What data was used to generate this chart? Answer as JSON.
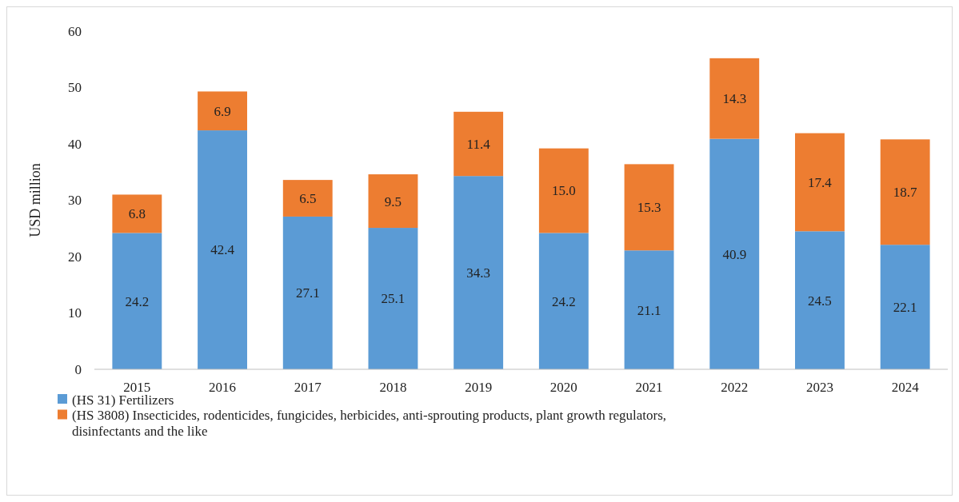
{
  "chart_data": {
    "type": "bar",
    "stacked": true,
    "ylabel": "USD million",
    "categories": [
      "2015",
      "2016",
      "2017",
      "2018",
      "2019",
      "2020",
      "2021",
      "2022",
      "2023",
      "2024"
    ],
    "series": [
      {
        "name": "(HS 31) Fertilizers",
        "color": "#5b9bd5",
        "values": [
          24.2,
          42.4,
          27.1,
          25.1,
          34.3,
          24.2,
          21.1,
          40.9,
          24.5,
          22.1
        ],
        "value_labels": [
          "24.2",
          "42.4",
          "27.1",
          "25.1",
          "34.3",
          "24.2",
          "21.1",
          "40.9",
          "24.5",
          "22.1"
        ]
      },
      {
        "name": "(HS 3808) Insecticides, rodenticides, fungicides, herbicides, anti-sprouting products, plant growth regulators, disinfectants and the like",
        "color": "#ed7d31",
        "values": [
          6.8,
          6.9,
          6.5,
          9.5,
          11.4,
          15.0,
          15.3,
          14.3,
          17.4,
          18.7
        ],
        "value_labels": [
          "6.8",
          "6.9",
          "6.5",
          "9.5",
          "11.4",
          "15.0",
          "15.3",
          "14.3",
          "17.4",
          "18.7"
        ]
      }
    ],
    "ylim": [
      0,
      60
    ],
    "yticks": [
      0,
      10,
      20,
      30,
      40,
      50,
      60
    ],
    "legend": "bottom"
  }
}
